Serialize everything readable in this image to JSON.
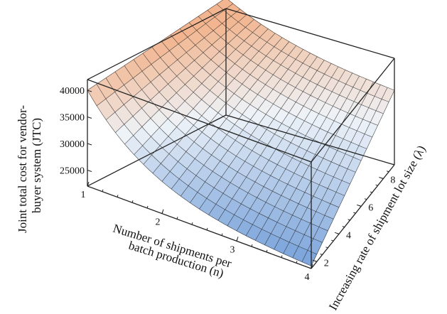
{
  "chart_data": {
    "type": "surface3d",
    "xlabel_lines": [
      "Number of shipments per",
      "batch production (n)"
    ],
    "ylabel_lines": [
      "Increasing rate of shipment lot size (λ)"
    ],
    "zlabel_lines": [
      "Joint total cost for vendor-",
      "buyer system (JTC)"
    ],
    "x_ticks": [
      "1",
      "2",
      "3",
      "4"
    ],
    "y_ticks": [
      "2",
      "4",
      "6",
      "8"
    ],
    "z_ticks": [
      "25000",
      "30000",
      "35000",
      "40000"
    ],
    "x_range": [
      1,
      4
    ],
    "y_range": [
      1.5,
      9
    ],
    "z_range": [
      22000,
      42000
    ],
    "surface_corners": {
      "n1_lambda1.5": 40000,
      "n1_lambda9": 44000,
      "n4_lambda1.5": 22500,
      "n4_lambda9": 36000
    },
    "colors": {
      "high": "#f2b58f",
      "mid": "#eef3f8",
      "low": "#7ea6dc"
    }
  }
}
